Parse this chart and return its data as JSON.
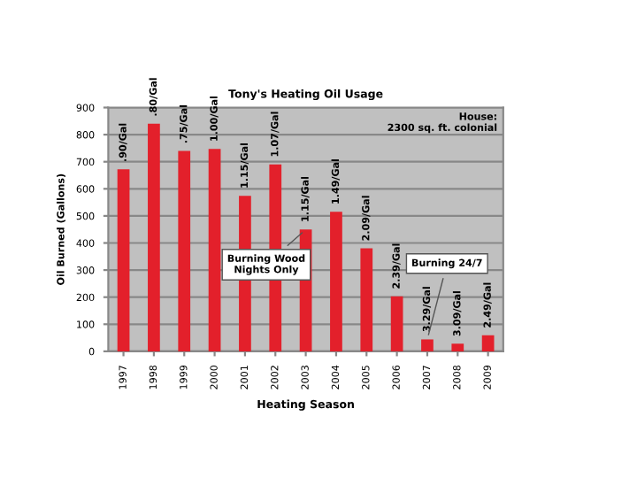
{
  "chart_data": {
    "type": "bar",
    "title": "Tony's Heating Oil Usage",
    "xlabel": "Heating Season",
    "ylabel": "Oil Burned (Gallons)",
    "categories": [
      "1997",
      "1998",
      "1999",
      "2000",
      "2001",
      "2002",
      "2003",
      "2004",
      "2005",
      "2006",
      "2007",
      "2008",
      "2009"
    ],
    "values": [
      672,
      840,
      740,
      747,
      574,
      690,
      450,
      515,
      380,
      203,
      44,
      28,
      59
    ],
    "color": "#e3202b",
    "ylim": [
      0,
      900
    ],
    "yticks": [
      0,
      100,
      200,
      300,
      400,
      500,
      600,
      700,
      800,
      900
    ],
    "grid": "y",
    "annotations": [
      {
        "text": ".90/Gal",
        "x": "1997",
        "y": 672
      },
      {
        "text": ".80/Gal",
        "x": "1998",
        "y": 840
      },
      {
        "text": ".75/Gal",
        "x": "1999",
        "y": 740
      },
      {
        "text": "1.00/Gal",
        "x": "2000",
        "y": 747
      },
      {
        "text": "1.15/Gal",
        "x": "2001",
        "y": 574
      },
      {
        "text": "1.07/Gal",
        "x": "2002",
        "y": 690
      },
      {
        "text": "1.15/Gal",
        "x": "2003",
        "y": 450
      },
      {
        "text": "1.49/Gal",
        "x": "2004",
        "y": 515
      },
      {
        "text": "2.09/Gal",
        "x": "2005",
        "y": 380
      },
      {
        "text": "2.39/Gal",
        "x": "2006",
        "y": 203
      },
      {
        "text": "3.29/Gal",
        "x": "2007",
        "y": 44
      },
      {
        "text": "3.09/Gal",
        "x": "2008",
        "y": 28
      },
      {
        "text": "2.49/Gal",
        "x": "2009",
        "y": 59
      },
      {
        "text": "Burning Wood\nNights Only",
        "x": "2003",
        "y": 450
      },
      {
        "text": "Burning 24/7",
        "x": "2007",
        "y": 44
      },
      "House:\n   2300 sq. ft. colonial"
    ]
  }
}
